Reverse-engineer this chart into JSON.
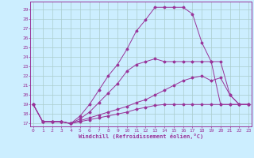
{
  "xlabel": "Windchill (Refroidissement éolien,°C)",
  "bg_color": "#cceeff",
  "grid_color": "#aacccc",
  "line_color": "#993399",
  "x_ticks": [
    0,
    1,
    2,
    3,
    4,
    5,
    6,
    7,
    8,
    9,
    10,
    11,
    12,
    13,
    14,
    15,
    16,
    17,
    18,
    19,
    20,
    21,
    22,
    23
  ],
  "y_ticks": [
    17,
    18,
    19,
    20,
    21,
    22,
    23,
    24,
    25,
    26,
    27,
    28,
    29
  ],
  "ylim": [
    16.7,
    29.8
  ],
  "xlim": [
    -0.3,
    23.3
  ],
  "lines": [
    {
      "x": [
        0,
        1,
        2,
        3,
        4,
        5,
        6,
        7,
        8,
        9,
        10,
        11,
        12,
        13,
        14,
        15,
        16,
        17,
        18,
        19,
        20,
        21,
        22,
        23
      ],
      "y": [
        19,
        17.2,
        17.2,
        17.2,
        17.0,
        17.8,
        19.0,
        20.5,
        22.0,
        23.2,
        24.8,
        26.7,
        27.9,
        29.2,
        29.2,
        29.2,
        29.2,
        28.5,
        25.5,
        23.5,
        19.0,
        19.0,
        19.0,
        19.0
      ]
    },
    {
      "x": [
        0,
        1,
        2,
        3,
        4,
        5,
        6,
        7,
        8,
        9,
        10,
        11,
        12,
        13,
        14,
        15,
        16,
        17,
        18,
        19,
        20,
        21,
        22,
        23
      ],
      "y": [
        19,
        17.2,
        17.2,
        17.2,
        17.0,
        17.5,
        18.2,
        19.2,
        20.2,
        21.2,
        22.5,
        23.2,
        23.5,
        23.8,
        23.5,
        23.5,
        23.5,
        23.5,
        23.5,
        23.5,
        23.5,
        20.0,
        19.0,
        19.0
      ]
    },
    {
      "x": [
        0,
        1,
        2,
        3,
        4,
        5,
        6,
        7,
        8,
        9,
        10,
        11,
        12,
        13,
        14,
        15,
        16,
        17,
        18,
        19,
        20,
        21,
        22,
        23
      ],
      "y": [
        19,
        17.2,
        17.2,
        17.2,
        17.0,
        17.3,
        17.6,
        17.9,
        18.2,
        18.5,
        18.8,
        19.2,
        19.5,
        20.0,
        20.5,
        21.0,
        21.5,
        21.8,
        22.0,
        21.5,
        21.8,
        20.0,
        19.0,
        19.0
      ]
    },
    {
      "x": [
        0,
        1,
        2,
        3,
        4,
        5,
        6,
        7,
        8,
        9,
        10,
        11,
        12,
        13,
        14,
        15,
        16,
        17,
        18,
        19,
        20,
        21,
        22,
        23
      ],
      "y": [
        19,
        17.2,
        17.2,
        17.2,
        17.0,
        17.2,
        17.4,
        17.6,
        17.8,
        18.0,
        18.2,
        18.5,
        18.7,
        18.9,
        19.0,
        19.0,
        19.0,
        19.0,
        19.0,
        19.0,
        19.0,
        19.0,
        19.0,
        19.0
      ]
    }
  ]
}
